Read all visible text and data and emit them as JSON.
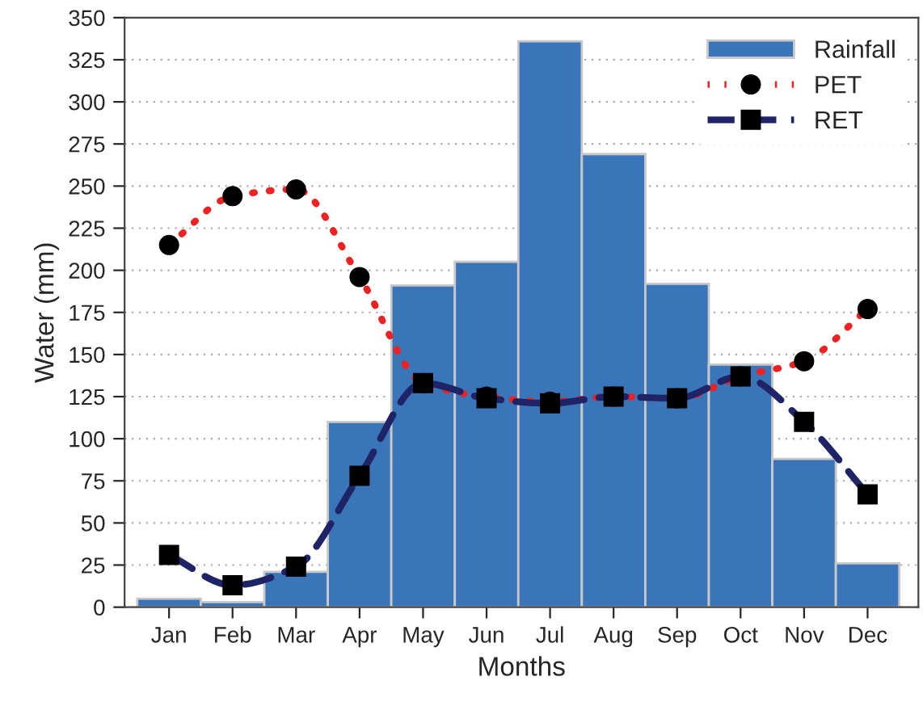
{
  "chart_data": {
    "type": "bar",
    "xlabel": "Months",
    "ylabel": "Water (mm)",
    "categories": [
      "Jan",
      "Feb",
      "Mar",
      "Apr",
      "May",
      "Jun",
      "Jul",
      "Aug",
      "Sep",
      "Oct",
      "Nov",
      "Dec"
    ],
    "series": [
      {
        "name": "Rainfall",
        "type": "bar",
        "color": "#3a75b9",
        "values": [
          5,
          3,
          21,
          110,
          191,
          205,
          336,
          269,
          192,
          144,
          88,
          26
        ]
      },
      {
        "name": "PET",
        "type": "line",
        "color": "#ee2222",
        "line_style": "dotted",
        "marker": "circle",
        "values": [
          215,
          244,
          248,
          196,
          133,
          125,
          122,
          125,
          124,
          137,
          146,
          177
        ]
      },
      {
        "name": "RET",
        "type": "line",
        "color": "#1f2466",
        "line_style": "dashed",
        "marker": "square",
        "values": [
          31,
          13,
          24,
          78,
          133,
          124,
          121,
          125,
          124,
          137,
          110,
          67
        ]
      }
    ],
    "ylim": [
      0,
      350
    ],
    "yticks": [
      0,
      25,
      50,
      75,
      100,
      125,
      150,
      175,
      200,
      225,
      250,
      275,
      300,
      325,
      350
    ],
    "grid": "y",
    "legend": "top right"
  }
}
